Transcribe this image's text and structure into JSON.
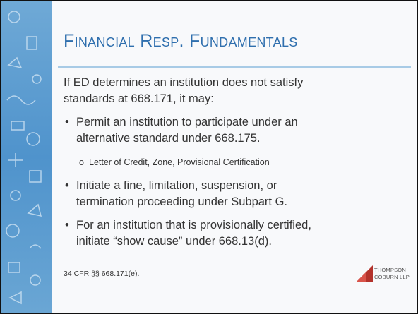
{
  "header": {
    "title": "Financial Resp. Fundamentals"
  },
  "body": {
    "intro": [
      "If ED determines an institution does not satisfy",
      "standards at 668.171, it may:"
    ],
    "bullets": [
      {
        "lines": [
          "Permit an institution to participate under an",
          "alternative standard under 668.175."
        ],
        "subitems": [
          "Letter of Credit, Zone, Provisional Certification"
        ]
      },
      {
        "lines": [
          "Initiate a fine, limitation, suspension, or",
          "termination proceeding under Subpart G."
        ]
      },
      {
        "lines": [
          "For an institution that is provisionally certified,",
          "initiate “show cause” under 668.13(d)."
        ]
      }
    ]
  },
  "footer": {
    "citation": "34 CFR §§ 668.171(e).",
    "logo": [
      "THOMPSON",
      "COBURN LLP"
    ]
  }
}
